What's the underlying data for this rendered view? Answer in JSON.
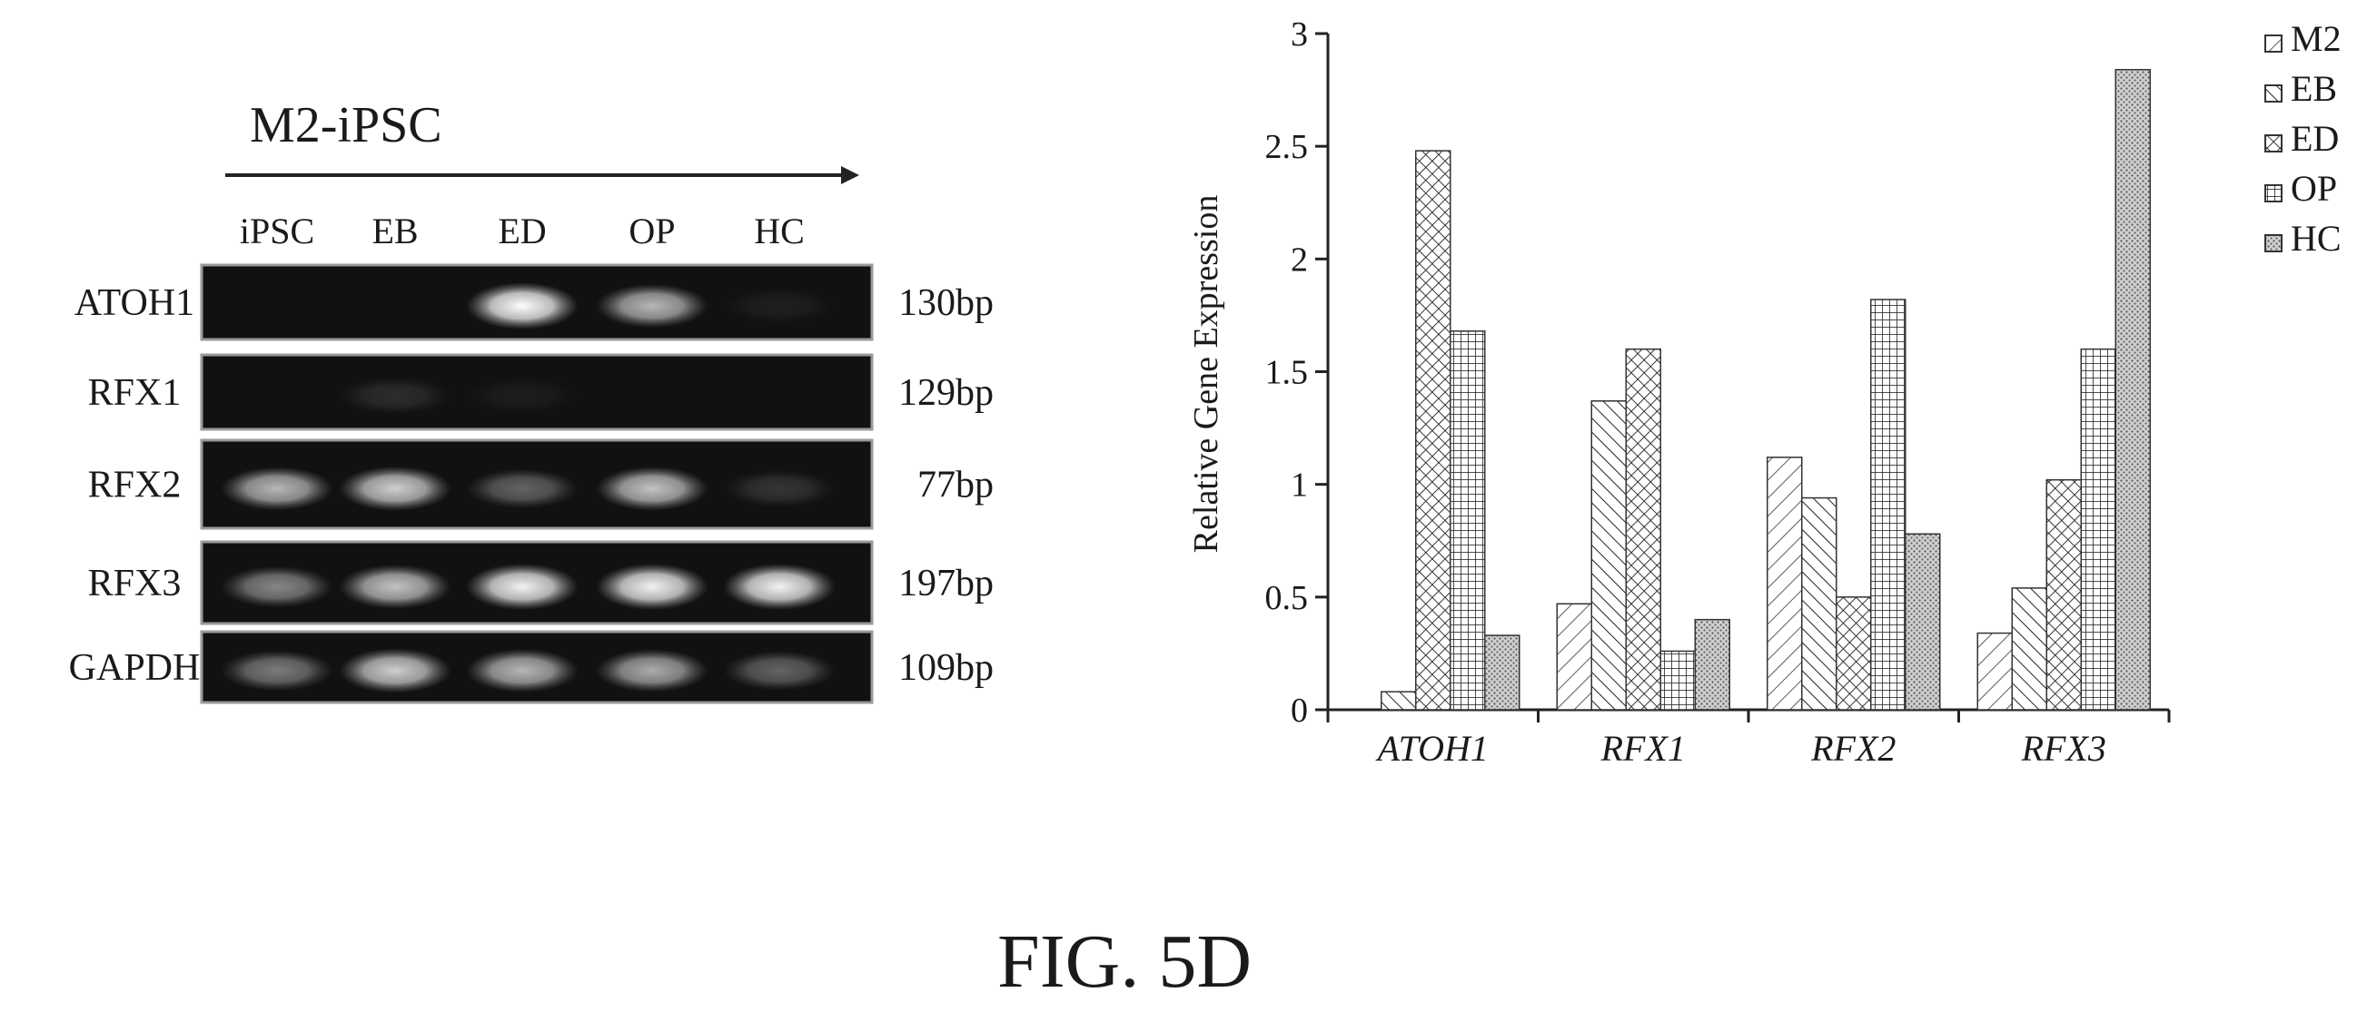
{
  "gel": {
    "title": "M2-iPSC",
    "lanes": [
      "iPSC",
      "EB",
      "ED",
      "OP",
      "HC"
    ],
    "rows": [
      {
        "gene": "ATOH1",
        "size": "130bp",
        "intensity": [
          0.0,
          0.0,
          1.0,
          0.7,
          0.06
        ]
      },
      {
        "gene": "RFX1",
        "size": "129bp",
        "intensity": [
          0.0,
          0.12,
          0.05,
          0.0,
          0.0
        ]
      },
      {
        "gene": "RFX2",
        "size": "77bp",
        "intensity": [
          0.7,
          0.8,
          0.35,
          0.75,
          0.15
        ]
      },
      {
        "gene": "RFX3",
        "size": "197bp",
        "intensity": [
          0.5,
          0.75,
          0.95,
          0.95,
          0.95
        ]
      },
      {
        "gene": "GAPDH",
        "size": "109bp",
        "intensity": [
          0.45,
          0.8,
          0.7,
          0.65,
          0.35
        ]
      }
    ]
  },
  "chart_data": {
    "type": "bar",
    "categories": [
      "ATOH1",
      "RFX1",
      "RFX2",
      "RFX3"
    ],
    "series": [
      {
        "name": "M2",
        "values": [
          0.0,
          0.47,
          1.12,
          0.34
        ],
        "pattern": "forward-diagonal-sparse"
      },
      {
        "name": "EB",
        "values": [
          0.08,
          1.37,
          0.94,
          0.54
        ],
        "pattern": "backward-diagonal"
      },
      {
        "name": "ED",
        "values": [
          2.48,
          1.6,
          0.5,
          1.02
        ],
        "pattern": "crosshatch-diagonal"
      },
      {
        "name": "OP",
        "values": [
          1.68,
          0.26,
          1.82,
          1.6
        ],
        "pattern": "grid"
      },
      {
        "name": "HC",
        "values": [
          0.33,
          0.4,
          0.78,
          2.84
        ],
        "pattern": "dots"
      }
    ],
    "title": "",
    "xlabel": "",
    "ylabel": "Relative Gene Expression",
    "ylim": [
      0,
      3
    ],
    "yticks": [
      "0",
      "0.5",
      "1",
      "1.5",
      "2",
      "2.5",
      "3"
    ],
    "legend": "top-right",
    "grid": false
  },
  "caption": "FIG. 5D"
}
